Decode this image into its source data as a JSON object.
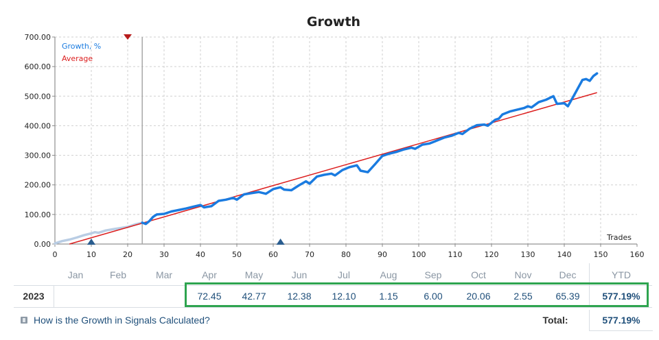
{
  "chart_data": {
    "type": "line",
    "title": "Growth",
    "xlabel": "Trades",
    "ylabel": "",
    "xlim": [
      0,
      160
    ],
    "ylim": [
      0,
      700
    ],
    "x_ticks": [
      0,
      10,
      20,
      30,
      40,
      50,
      60,
      70,
      80,
      90,
      100,
      110,
      120,
      130,
      140,
      150,
      160
    ],
    "y_ticks": [
      "0.00",
      "100.00",
      "200.00",
      "300.00",
      "400.00",
      "500.00",
      "600.00",
      "700.00"
    ],
    "grid": true,
    "legend": {
      "position": "top-left",
      "entries": [
        "Growth, %",
        "Average"
      ]
    },
    "series": [
      {
        "name": "Growth, %",
        "color": "#1a7be0",
        "history_until_x": 24,
        "history_color": "#b9cde4",
        "points": [
          [
            0,
            2
          ],
          [
            2,
            10
          ],
          [
            4,
            15
          ],
          [
            6,
            22
          ],
          [
            8,
            30
          ],
          [
            10,
            36
          ],
          [
            11,
            40
          ],
          [
            12,
            38
          ],
          [
            14,
            46
          ],
          [
            16,
            50
          ],
          [
            18,
            54
          ],
          [
            20,
            58
          ],
          [
            22,
            66
          ],
          [
            24,
            72
          ],
          [
            25,
            68
          ],
          [
            26,
            78
          ],
          [
            27,
            92
          ],
          [
            28,
            100
          ],
          [
            30,
            102
          ],
          [
            32,
            110
          ],
          [
            34,
            115
          ],
          [
            36,
            120
          ],
          [
            38,
            126
          ],
          [
            40,
            132
          ],
          [
            41,
            124
          ],
          [
            43,
            128
          ],
          [
            45,
            146
          ],
          [
            47,
            150
          ],
          [
            49,
            156
          ],
          [
            50,
            150
          ],
          [
            52,
            168
          ],
          [
            54,
            172
          ],
          [
            56,
            176
          ],
          [
            58,
            170
          ],
          [
            60,
            186
          ],
          [
            62,
            192
          ],
          [
            63,
            184
          ],
          [
            65,
            182
          ],
          [
            67,
            198
          ],
          [
            69,
            212
          ],
          [
            70,
            204
          ],
          [
            72,
            228
          ],
          [
            74,
            234
          ],
          [
            76,
            238
          ],
          [
            77,
            232
          ],
          [
            79,
            250
          ],
          [
            81,
            260
          ],
          [
            83,
            266
          ],
          [
            84,
            248
          ],
          [
            86,
            243
          ],
          [
            88,
            270
          ],
          [
            90,
            298
          ],
          [
            92,
            306
          ],
          [
            94,
            312
          ],
          [
            96,
            320
          ],
          [
            98,
            326
          ],
          [
            99,
            322
          ],
          [
            101,
            336
          ],
          [
            103,
            340
          ],
          [
            105,
            350
          ],
          [
            107,
            360
          ],
          [
            109,
            366
          ],
          [
            111,
            376
          ],
          [
            112,
            372
          ],
          [
            114,
            390
          ],
          [
            116,
            402
          ],
          [
            118,
            404
          ],
          [
            119,
            400
          ],
          [
            121,
            420
          ],
          [
            122,
            424
          ],
          [
            123,
            438
          ],
          [
            125,
            448
          ],
          [
            127,
            454
          ],
          [
            129,
            460
          ],
          [
            130,
            466
          ],
          [
            131,
            462
          ],
          [
            133,
            480
          ],
          [
            135,
            488
          ],
          [
            137,
            500
          ],
          [
            138,
            474
          ],
          [
            140,
            476
          ],
          [
            141,
            466
          ],
          [
            143,
            510
          ],
          [
            145,
            555
          ],
          [
            146,
            558
          ],
          [
            147,
            552
          ],
          [
            148,
            568
          ],
          [
            149,
            577
          ]
        ]
      },
      {
        "name": "Average",
        "color": "#dc1f1f",
        "points": [
          [
            4,
            0
          ],
          [
            149,
            512
          ]
        ]
      }
    ],
    "markers": [
      {
        "type": "down-triangle",
        "x": 20,
        "y": 700,
        "color": "#b71c1c"
      },
      {
        "type": "up-triangle",
        "x": 10,
        "y": 0,
        "color": "#2a5d8f"
      },
      {
        "type": "up-triangle",
        "x": 62,
        "y": 0,
        "color": "#2a5d8f"
      }
    ],
    "vertical_line_x": 24
  },
  "table": {
    "months": [
      "Jan",
      "Feb",
      "Mar",
      "Apr",
      "May",
      "Jun",
      "Jul",
      "Aug",
      "Sep",
      "Oct",
      "Nov",
      "Dec"
    ],
    "ytd_header": "YTD",
    "year": "2023",
    "values": [
      "",
      "",
      "",
      "72.45",
      "42.77",
      "12.38",
      "12.10",
      "1.15",
      "6.00",
      "20.06",
      "2.55",
      "65.39"
    ],
    "ytd_value": "577.19%",
    "highlight_color": "#2ea44f"
  },
  "footer": {
    "help_link": "How is the Growth in Signals Calculated?",
    "total_label": "Total:",
    "total_value": "577.19%"
  }
}
